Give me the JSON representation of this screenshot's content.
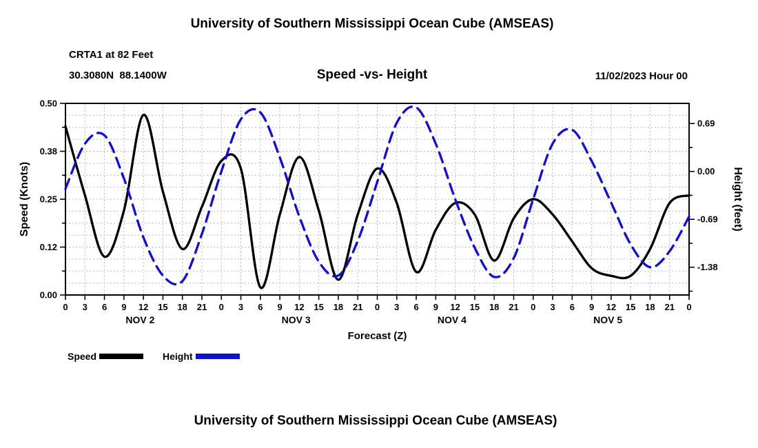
{
  "page": {
    "title_top": "University of Southern Mississippi Ocean Cube (AMSEAS)",
    "title_bottom": "University of Southern Mississippi Ocean Cube (AMSEAS)"
  },
  "header": {
    "station": "CRTA1 at 82 Feet",
    "coordinates": "30.3080N  88.1400W",
    "plot_title": "Speed -vs- Height",
    "datetime": "11/02/2023 Hour 00"
  },
  "legend": {
    "speed_label": "Speed",
    "height_label": "Height"
  },
  "colors": {
    "speed": "#000000",
    "height": "#1111cc",
    "grid": "#b5b5b5",
    "axis": "#000000"
  },
  "chart_data": {
    "type": "line",
    "title": "Speed -vs- Height",
    "xlabel": "Forecast (Z)",
    "ylabel_left": "Speed (Knots)",
    "ylabel_right": "Height (feet)",
    "x_range": [
      0,
      96
    ],
    "x_tick_step": 3,
    "x_hours": [
      0,
      3,
      6,
      9,
      12,
      15,
      18,
      21,
      24,
      27,
      30,
      33,
      36,
      39,
      42,
      45,
      48,
      51,
      54,
      57,
      60,
      63,
      66,
      69,
      72,
      75,
      78,
      81,
      84,
      87,
      90,
      93,
      96
    ],
    "x_tick_labels": [
      "0",
      "3",
      "6",
      "9",
      "12",
      "15",
      "18",
      "21",
      "0",
      "3",
      "6",
      "9",
      "12",
      "15",
      "18",
      "21",
      "0",
      "3",
      "6",
      "9",
      "12",
      "15",
      "18",
      "21",
      "0",
      "3",
      "6",
      "9",
      "12",
      "15",
      "18",
      "21",
      "0"
    ],
    "x_day_labels": [
      {
        "label": "NOV 2",
        "center_hour": 11.5
      },
      {
        "label": "NOV 3",
        "center_hour": 35.5
      },
      {
        "label": "NOV 4",
        "center_hour": 59.5
      },
      {
        "label": "NOV 5",
        "center_hour": 83.5
      }
    ],
    "y_left": {
      "min": 0.0,
      "max": 0.5,
      "tick_values": [
        0.0,
        0.125,
        0.25,
        0.375,
        0.5
      ],
      "tick_labels": [
        "0.00",
        "0.12",
        "0.25",
        "0.38",
        "0.50"
      ],
      "grid_step": 0.03125,
      "minor_tick_step": 0.0625
    },
    "y_right": {
      "min": -1.78,
      "max": 0.98,
      "tick_values": [
        0.69,
        0.0,
        -0.69,
        -1.38
      ],
      "tick_labels": [
        "0.69",
        "0.00",
        "-0.69",
        "-1.38"
      ],
      "minor_tick_values": [
        0.345,
        -0.345,
        -1.035,
        -1.725
      ]
    },
    "series": [
      {
        "name": "Speed",
        "axis": "left",
        "style": "solid",
        "values": [
          0.44,
          0.26,
          0.1,
          0.22,
          0.47,
          0.27,
          0.12,
          0.23,
          0.35,
          0.33,
          0.02,
          0.21,
          0.36,
          0.22,
          0.04,
          0.21,
          0.33,
          0.24,
          0.06,
          0.17,
          0.24,
          0.21,
          0.09,
          0.2,
          0.25,
          0.21,
          0.14,
          0.07,
          0.05,
          0.05,
          0.12,
          0.24,
          0.26
        ]
      },
      {
        "name": "Height",
        "axis": "right",
        "style": "dashed",
        "values": [
          -0.25,
          0.4,
          0.52,
          -0.1,
          -0.95,
          -1.5,
          -1.58,
          -0.9,
          0.0,
          0.75,
          0.85,
          0.2,
          -0.65,
          -1.3,
          -1.5,
          -1.0,
          -0.15,
          0.7,
          0.92,
          0.4,
          -0.4,
          -1.1,
          -1.52,
          -1.25,
          -0.4,
          0.4,
          0.6,
          0.15,
          -0.45,
          -1.05,
          -1.38,
          -1.15,
          -0.65
        ]
      }
    ],
    "grid": true,
    "legend_position": "bottom-left"
  }
}
